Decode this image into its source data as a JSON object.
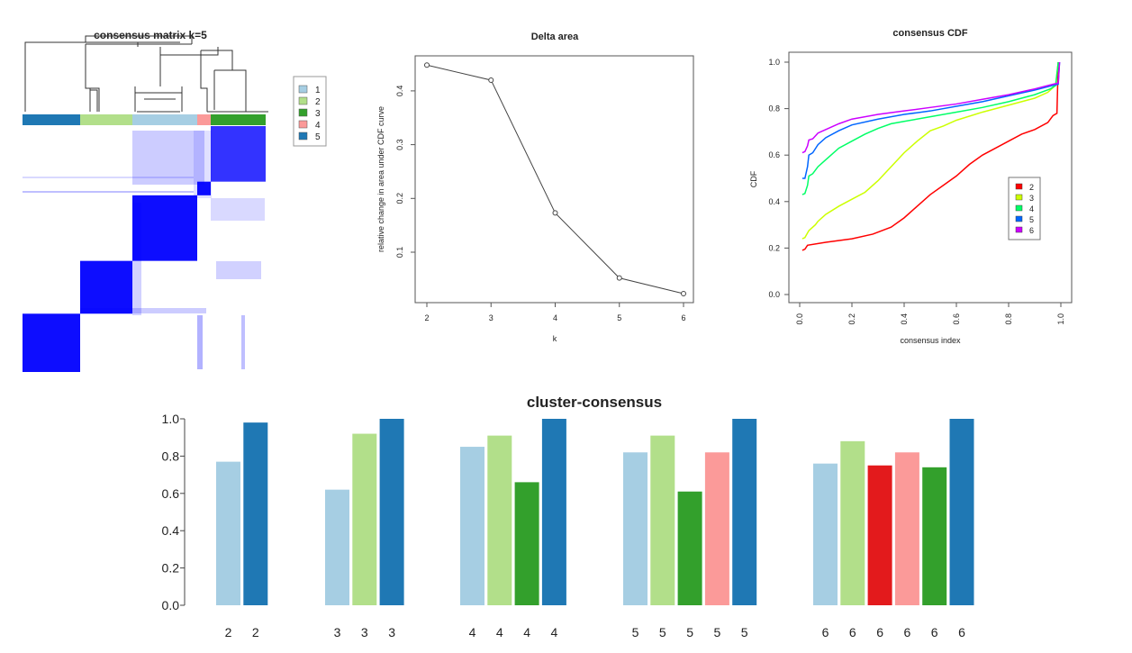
{
  "chart_data": [
    {
      "type": "heatmap",
      "title": "consensus matrix k=5",
      "cluster_order": [
        "5",
        "2",
        "1",
        "4",
        "3"
      ],
      "legend": [
        {
          "label": "1",
          "color": "#a6cee3"
        },
        {
          "label": "2",
          "color": "#b2df8a"
        },
        {
          "label": "3",
          "color": "#33a02c"
        },
        {
          "label": "4",
          "color": "#fb9a99"
        },
        {
          "label": "5",
          "color": "#1f78b4"
        }
      ],
      "cell_color": "#0000ff"
    },
    {
      "type": "line",
      "title": "Delta area",
      "xlabel": "k",
      "ylabel": "relative change in area under CDF curve",
      "x": [
        2,
        3,
        4,
        5,
        6
      ],
      "y": [
        0.448,
        0.42,
        0.173,
        0.052,
        0.023
      ],
      "xticks": [
        "2",
        "3",
        "4",
        "5",
        "6"
      ],
      "yticks": [
        "0.1",
        "0.2",
        "0.3",
        "0.4"
      ]
    },
    {
      "type": "line",
      "title": "consensus CDF",
      "xlabel": "consensus index",
      "ylabel": "CDF",
      "xlim": [
        0,
        1
      ],
      "ylim": [
        0,
        1
      ],
      "xticks": [
        "0.0",
        "0.2",
        "0.4",
        "0.6",
        "0.8",
        "1.0"
      ],
      "yticks": [
        "0.0",
        "0.2",
        "0.4",
        "0.6",
        "0.8",
        "1.0"
      ],
      "legend_position": "right",
      "series": [
        {
          "name": "2",
          "color": "#ff0000",
          "points": [
            [
              0.01,
              0.19
            ],
            [
              0.02,
              0.195
            ],
            [
              0.03,
              0.212
            ],
            [
              0.1,
              0.225
            ],
            [
              0.2,
              0.24
            ],
            [
              0.28,
              0.26
            ],
            [
              0.35,
              0.29
            ],
            [
              0.4,
              0.33
            ],
            [
              0.45,
              0.38
            ],
            [
              0.5,
              0.43
            ],
            [
              0.55,
              0.47
            ],
            [
              0.6,
              0.51
            ],
            [
              0.65,
              0.56
            ],
            [
              0.7,
              0.6
            ],
            [
              0.75,
              0.63
            ],
            [
              0.8,
              0.66
            ],
            [
              0.85,
              0.69
            ],
            [
              0.9,
              0.71
            ],
            [
              0.95,
              0.74
            ],
            [
              0.97,
              0.77
            ],
            [
              0.985,
              0.78
            ],
            [
              0.99,
              1.0
            ]
          ]
        },
        {
          "name": "3",
          "color": "#ccff00",
          "points": [
            [
              0.01,
              0.24
            ],
            [
              0.02,
              0.245
            ],
            [
              0.035,
              0.275
            ],
            [
              0.06,
              0.3
            ],
            [
              0.07,
              0.315
            ],
            [
              0.1,
              0.345
            ],
            [
              0.15,
              0.38
            ],
            [
              0.2,
              0.41
            ],
            [
              0.25,
              0.44
            ],
            [
              0.3,
              0.49
            ],
            [
              0.35,
              0.55
            ],
            [
              0.4,
              0.61
            ],
            [
              0.45,
              0.66
            ],
            [
              0.5,
              0.705
            ],
            [
              0.55,
              0.725
            ],
            [
              0.6,
              0.75
            ],
            [
              0.7,
              0.785
            ],
            [
              0.8,
              0.815
            ],
            [
              0.9,
              0.845
            ],
            [
              0.95,
              0.87
            ],
            [
              0.98,
              0.9
            ],
            [
              0.99,
              1.0
            ]
          ]
        },
        {
          "name": "4",
          "color": "#00ff66",
          "points": [
            [
              0.01,
              0.43
            ],
            [
              0.02,
              0.435
            ],
            [
              0.03,
              0.47
            ],
            [
              0.035,
              0.51
            ],
            [
              0.05,
              0.52
            ],
            [
              0.07,
              0.55
            ],
            [
              0.1,
              0.58
            ],
            [
              0.15,
              0.63
            ],
            [
              0.2,
              0.66
            ],
            [
              0.25,
              0.69
            ],
            [
              0.3,
              0.715
            ],
            [
              0.35,
              0.735
            ],
            [
              0.4,
              0.745
            ],
            [
              0.5,
              0.765
            ],
            [
              0.6,
              0.785
            ],
            [
              0.7,
              0.805
            ],
            [
              0.8,
              0.83
            ],
            [
              0.9,
              0.86
            ],
            [
              0.96,
              0.885
            ],
            [
              0.98,
              0.9
            ],
            [
              0.99,
              1.0
            ]
          ]
        },
        {
          "name": "5",
          "color": "#0066ff",
          "points": [
            [
              0.01,
              0.5
            ],
            [
              0.02,
              0.5
            ],
            [
              0.03,
              0.55
            ],
            [
              0.035,
              0.6
            ],
            [
              0.05,
              0.61
            ],
            [
              0.07,
              0.645
            ],
            [
              0.1,
              0.675
            ],
            [
              0.15,
              0.705
            ],
            [
              0.2,
              0.73
            ],
            [
              0.3,
              0.755
            ],
            [
              0.4,
              0.775
            ],
            [
              0.5,
              0.79
            ],
            [
              0.6,
              0.81
            ],
            [
              0.7,
              0.83
            ],
            [
              0.8,
              0.855
            ],
            [
              0.9,
              0.88
            ],
            [
              0.97,
              0.9
            ],
            [
              0.99,
              0.905
            ],
            [
              0.995,
              1.0
            ]
          ]
        },
        {
          "name": "6",
          "color": "#cc00ff",
          "points": [
            [
              0.01,
              0.61
            ],
            [
              0.02,
              0.615
            ],
            [
              0.03,
              0.64
            ],
            [
              0.035,
              0.665
            ],
            [
              0.05,
              0.67
            ],
            [
              0.07,
              0.695
            ],
            [
              0.1,
              0.71
            ],
            [
              0.15,
              0.735
            ],
            [
              0.2,
              0.755
            ],
            [
              0.3,
              0.775
            ],
            [
              0.4,
              0.79
            ],
            [
              0.5,
              0.805
            ],
            [
              0.6,
              0.82
            ],
            [
              0.7,
              0.84
            ],
            [
              0.8,
              0.86
            ],
            [
              0.9,
              0.885
            ],
            [
              0.97,
              0.905
            ],
            [
              0.99,
              0.91
            ],
            [
              0.995,
              1.0
            ]
          ]
        }
      ]
    },
    {
      "type": "bar",
      "title": "cluster-consensus",
      "ylim": [
        0,
        1
      ],
      "yticks": [
        "0.0",
        "0.2",
        "0.4",
        "0.6",
        "0.8",
        "1.0"
      ],
      "groups": [
        {
          "k": "2",
          "bars": [
            {
              "value": 0.77,
              "color": "#a6cee3"
            },
            {
              "value": 0.98,
              "color": "#1f78b4"
            }
          ]
        },
        {
          "k": "3",
          "bars": [
            {
              "value": 0.62,
              "color": "#a6cee3"
            },
            {
              "value": 0.92,
              "color": "#b2df8a"
            },
            {
              "value": 1.0,
              "color": "#1f78b4"
            }
          ]
        },
        {
          "k": "4",
          "bars": [
            {
              "value": 0.85,
              "color": "#a6cee3"
            },
            {
              "value": 0.91,
              "color": "#b2df8a"
            },
            {
              "value": 0.66,
              "color": "#33a02c"
            },
            {
              "value": 1.0,
              "color": "#1f78b4"
            }
          ]
        },
        {
          "k": "5",
          "bars": [
            {
              "value": 0.82,
              "color": "#a6cee3"
            },
            {
              "value": 0.91,
              "color": "#b2df8a"
            },
            {
              "value": 0.61,
              "color": "#33a02c"
            },
            {
              "value": 0.82,
              "color": "#fb9a99"
            },
            {
              "value": 1.0,
              "color": "#1f78b4"
            }
          ]
        },
        {
          "k": "6",
          "bars": [
            {
              "value": 0.76,
              "color": "#a6cee3"
            },
            {
              "value": 0.88,
              "color": "#b2df8a"
            },
            {
              "value": 0.75,
              "color": "#e31a1c"
            },
            {
              "value": 0.82,
              "color": "#fb9a99"
            },
            {
              "value": 0.74,
              "color": "#33a02c"
            },
            {
              "value": 1.0,
              "color": "#1f78b4"
            }
          ]
        }
      ]
    }
  ]
}
